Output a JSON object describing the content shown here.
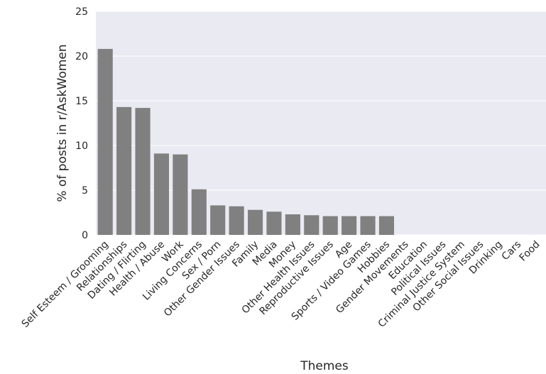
{
  "chart_data": {
    "type": "bar",
    "title": "",
    "xlabel": "Themes",
    "ylabel": "% of posts in r/AskWomen",
    "ylim": [
      0,
      25
    ],
    "yticks": [
      0,
      5,
      10,
      15,
      20,
      25
    ],
    "grid": true,
    "categories": [
      "Self Esteem / Grooming",
      "Relationships",
      "Dating / Flirting",
      "Health / Abuse",
      "Work",
      "Living Concerns",
      "Sex / Porn",
      "Other Gender Issues",
      "Family",
      "Media",
      "Money",
      "Other Health Issues",
      "Reproductive Issues",
      "Age",
      "Sports / Video Games",
      "Hobbies",
      "Gender Movements",
      "Education",
      "Political Issues",
      "Criminal Justice System",
      "Other Social Issues",
      "Drinking",
      "Cars",
      "Food"
    ],
    "values": [
      20.8,
      14.3,
      14.2,
      9.1,
      9.0,
      5.1,
      3.3,
      3.2,
      2.8,
      2.6,
      2.3,
      2.2,
      2.1,
      2.1,
      2.1,
      2.1,
      0,
      0,
      0,
      0,
      0,
      0,
      0,
      0
    ],
    "colors": {
      "bar": "#808080",
      "plot_background": "#eaeaf2",
      "grid": "#ffffff",
      "text": "#262626"
    }
  }
}
